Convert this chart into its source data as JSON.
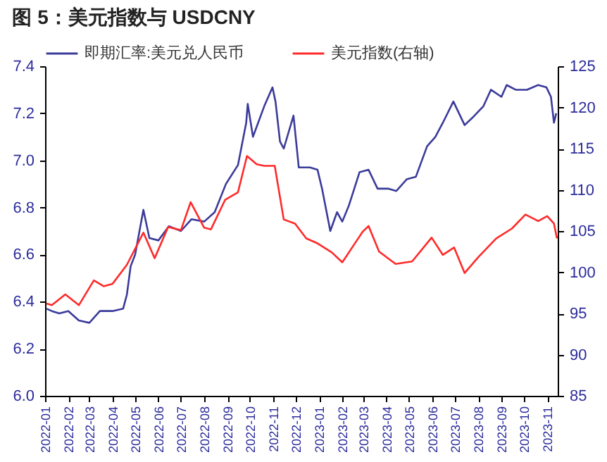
{
  "chart_data": {
    "type": "line",
    "title": "图 5：美元指数与 USDCNY",
    "x": [
      "2022-01-03",
      "2022-01-10",
      "2022-01-20",
      "2022-02-01",
      "2022-02-15",
      "2022-03-01",
      "2022-03-15",
      "2022-04-01",
      "2022-04-15",
      "2022-04-20",
      "2022-04-25",
      "2022-05-01",
      "2022-05-12",
      "2022-05-20",
      "2022-06-01",
      "2022-06-15",
      "2022-07-01",
      "2022-07-15",
      "2022-08-01",
      "2022-08-15",
      "2022-08-30",
      "2022-09-15",
      "2022-09-26",
      "2022-09-28",
      "2022-10-05",
      "2022-10-20",
      "2022-10-31",
      "2022-11-04",
      "2022-11-10",
      "2022-11-15",
      "2022-11-28",
      "2022-12-05",
      "2022-12-20",
      "2022-12-30",
      "2023-01-05",
      "2023-01-16",
      "2023-01-25",
      "2023-02-01",
      "2023-02-10",
      "2023-02-24",
      "2023-03-08",
      "2023-03-20",
      "2023-04-03",
      "2023-04-14",
      "2023-04-28",
      "2023-05-10",
      "2023-05-25",
      "2023-06-05",
      "2023-06-15",
      "2023-06-29",
      "2023-07-14",
      "2023-07-24",
      "2023-08-08",
      "2023-08-18",
      "2023-09-01",
      "2023-09-08",
      "2023-09-20",
      "2023-10-05",
      "2023-10-20",
      "2023-10-31",
      "2023-11-06",
      "2023-11-10",
      "2023-11-13"
    ],
    "series": [
      {
        "name": "即期汇率:美元兑人民币",
        "color": "#3b3b9b",
        "values": [
          6.37,
          6.36,
          6.35,
          6.36,
          6.32,
          6.31,
          6.36,
          6.36,
          6.37,
          6.43,
          6.55,
          6.6,
          6.79,
          6.67,
          6.66,
          6.72,
          6.7,
          6.75,
          6.74,
          6.78,
          6.9,
          6.98,
          7.16,
          7.24,
          7.1,
          7.23,
          7.31,
          7.25,
          7.08,
          7.05,
          7.19,
          6.97,
          6.97,
          6.96,
          6.88,
          6.7,
          6.78,
          6.74,
          6.81,
          6.95,
          6.96,
          6.88,
          6.88,
          6.87,
          6.92,
          6.93,
          7.06,
          7.1,
          7.16,
          7.25,
          7.15,
          7.18,
          7.23,
          7.3,
          7.27,
          7.32,
          7.3,
          7.3,
          7.32,
          7.31,
          7.27,
          7.16,
          7.2
        ]
      },
      {
        "name": "美元指数(右轴)",
        "color": "#ff2a2a",
        "axis": "y2",
        "x": [
          "2022-01-03",
          "2022-01-10",
          "2022-01-28",
          "2022-02-15",
          "2022-03-07",
          "2022-03-20",
          "2022-04-01",
          "2022-04-20",
          "2022-05-12",
          "2022-05-27",
          "2022-06-14",
          "2022-07-01",
          "2022-07-14",
          "2022-08-01",
          "2022-08-10",
          "2022-08-29",
          "2022-09-15",
          "2022-09-27",
          "2022-10-10",
          "2022-10-20",
          "2022-11-03",
          "2022-11-15",
          "2022-11-30",
          "2022-12-15",
          "2022-12-30",
          "2023-01-18",
          "2023-02-01",
          "2023-02-28",
          "2023-03-08",
          "2023-03-22",
          "2023-04-13",
          "2023-05-05",
          "2023-05-31",
          "2023-06-15",
          "2023-06-30",
          "2023-07-14",
          "2023-08-01",
          "2023-08-25",
          "2023-09-15",
          "2023-10-03",
          "2023-10-20",
          "2023-11-01",
          "2023-11-10",
          "2023-11-14"
        ],
        "values": [
          96.2,
          96,
          97.3,
          96,
          99,
          98.3,
          98.6,
          100.9,
          104.8,
          101.7,
          105.5,
          105.1,
          108.5,
          105.4,
          105.2,
          108.8,
          109.7,
          114.1,
          113.1,
          112.9,
          112.9,
          106.4,
          105.9,
          104.1,
          103.5,
          102.4,
          101.2,
          104.9,
          105.6,
          102.5,
          101,
          101.3,
          104.2,
          102.1,
          103,
          99.9,
          101.8,
          104.1,
          105.3,
          107,
          106.2,
          106.8,
          105.9,
          104.1
        ]
      }
    ],
    "xlim": [
      "2022-01-01",
      "2023-11-15"
    ],
    "xticks": [
      "2022-01",
      "2022-02",
      "2022-03",
      "2022-04",
      "2022-05",
      "2022-06",
      "2022-07",
      "2022-08",
      "2022-09",
      "2022-10",
      "2022-11",
      "2022-12",
      "2023-01",
      "2023-02",
      "2023-03",
      "2023-04",
      "2023-05",
      "2023-06",
      "2023-07",
      "2023-08",
      "2023-09",
      "2023-10",
      "2023-11"
    ],
    "ylim": [
      6.0,
      7.4
    ],
    "yticks": [
      {
        "value": 6,
        "label": "6.0"
      },
      6.2,
      6.4,
      6.6,
      6.8,
      {
        "value": 7,
        "label": "7.0"
      },
      7.2,
      7.4
    ],
    "y2lim": [
      85,
      125
    ],
    "y2ticks": [
      85,
      90,
      95,
      100,
      105,
      110,
      115,
      120,
      125
    ],
    "grid": false,
    "legend": "top",
    "line_style": "solid",
    "marker": "none"
  }
}
